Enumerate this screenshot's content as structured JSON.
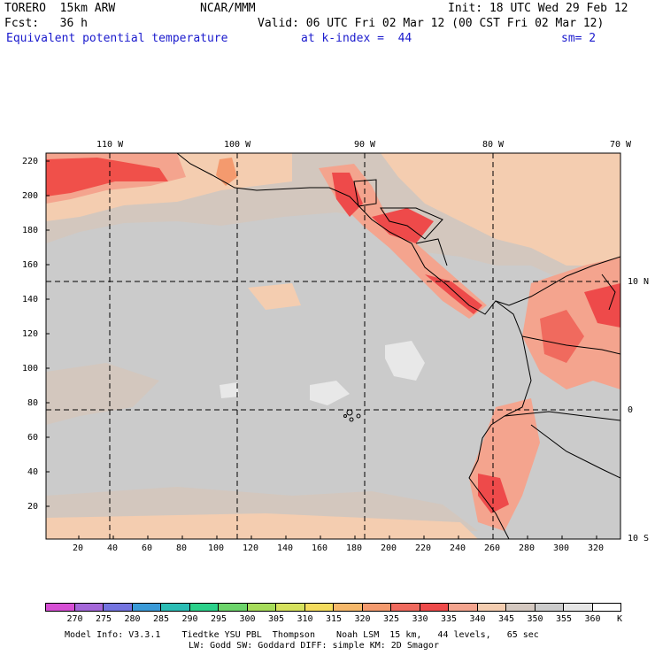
{
  "header": {
    "model": "TORERO  15km ARW",
    "org": "NCAR/MMM",
    "init": "Init: 18 UTC Wed 29 Feb 12",
    "fcst": "Fcst:   36 h",
    "valid": "Valid: 06 UTC Fri 02 Mar 12 (00 CST Fri 02 Mar 12)",
    "field": "Equivalent potential temperature",
    "level": "at k-index =  44",
    "smooth": "sm= 2"
  },
  "map": {
    "lon_labels": [
      "110 W",
      "100 W",
      "90 W",
      "80 W",
      "70 W"
    ],
    "lat_labels": [
      "10 N",
      "0",
      "10 S"
    ],
    "y_ticks": [
      "220",
      "200",
      "180",
      "160",
      "140",
      "120",
      "100",
      "80",
      "60",
      "40",
      "20"
    ],
    "x_ticks": [
      "20",
      "40",
      "60",
      "80",
      "100",
      "120",
      "140",
      "160",
      "180",
      "200",
      "220",
      "240",
      "260",
      "280",
      "300",
      "320"
    ]
  },
  "colorbar": {
    "labels": [
      "270",
      "275",
      "280",
      "285",
      "290",
      "295",
      "300",
      "305",
      "310",
      "315",
      "320",
      "325",
      "330",
      "335",
      "340",
      "345",
      "350",
      "355",
      "360"
    ],
    "unit": "K",
    "colors": [
      "#d64fd4",
      "#a467d9",
      "#7474e0",
      "#3a9ad8",
      "#2bbdb5",
      "#2bd18a",
      "#6cd46a",
      "#a6dc5a",
      "#d6e25e",
      "#f4dc5e",
      "#f6b86a",
      "#f49a6e",
      "#f06a5e",
      "#ee4a4a",
      "#f4a48e",
      "#f4cdb0",
      "#d4c8c0",
      "#cccccc",
      "#e6e6e6",
      "#ffffff"
    ]
  },
  "footer": {
    "line1": "Model Info: V3.3.1    Tiedtke YSU PBL  Thompson    Noah LSM  15 km,   44 levels,   65 sec",
    "line2": "LW: Godd SW: Goddard DIFF: simple KM: 2D Smagor"
  }
}
